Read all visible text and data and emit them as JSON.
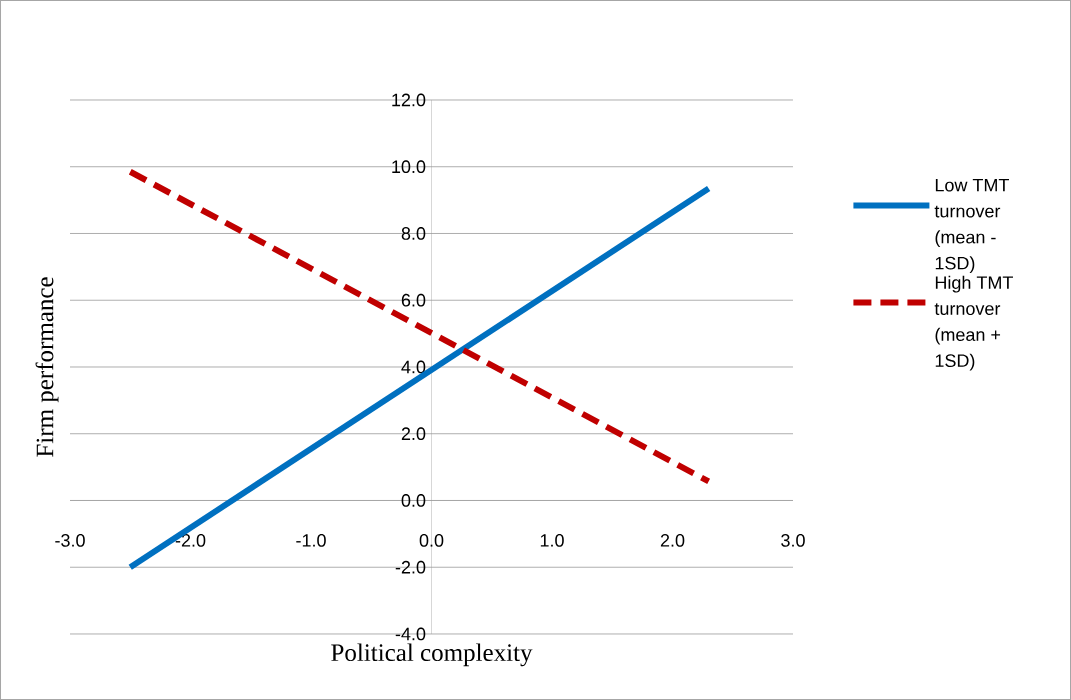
{
  "chart_data": {
    "type": "line",
    "xlabel": "Political complexity",
    "ylabel": "Firm performance",
    "xlim": [
      -3,
      3
    ],
    "ylim": [
      -4,
      12
    ],
    "xticks": [
      {
        "value": -3,
        "label": "-3.0"
      },
      {
        "value": -2,
        "label": "-2.0"
      },
      {
        "value": -1,
        "label": "-1.0"
      },
      {
        "value": 0,
        "label": "0.0"
      },
      {
        "value": 1,
        "label": "1.0"
      },
      {
        "value": 2,
        "label": "2.0"
      },
      {
        "value": 3,
        "label": "3.0"
      }
    ],
    "yticks": [
      {
        "value": -4,
        "label": "-4.0"
      },
      {
        "value": -2,
        "label": "-2.0"
      },
      {
        "value": 0,
        "label": "0.0"
      },
      {
        "value": 2,
        "label": "2.0"
      },
      {
        "value": 4,
        "label": "4.0"
      },
      {
        "value": 6,
        "label": "6.0"
      },
      {
        "value": 8,
        "label": "8.0"
      },
      {
        "value": 10,
        "label": "10.0"
      },
      {
        "value": 12,
        "label": "12.0"
      }
    ],
    "grid": "y",
    "legend": "right",
    "marker": "none",
    "x": [
      -2.5,
      2.3
    ],
    "series": [
      {
        "name": "Low TMT turnover (mean - 1SD)",
        "color": "#0070c0",
        "line_style": "solid",
        "values": [
          -2.0,
          9.35
        ]
      },
      {
        "name": "High TMT turnover (mean + 1SD)",
        "color": "#c00000",
        "line_style": "dashed",
        "values": [
          9.85,
          0.57
        ]
      }
    ]
  }
}
